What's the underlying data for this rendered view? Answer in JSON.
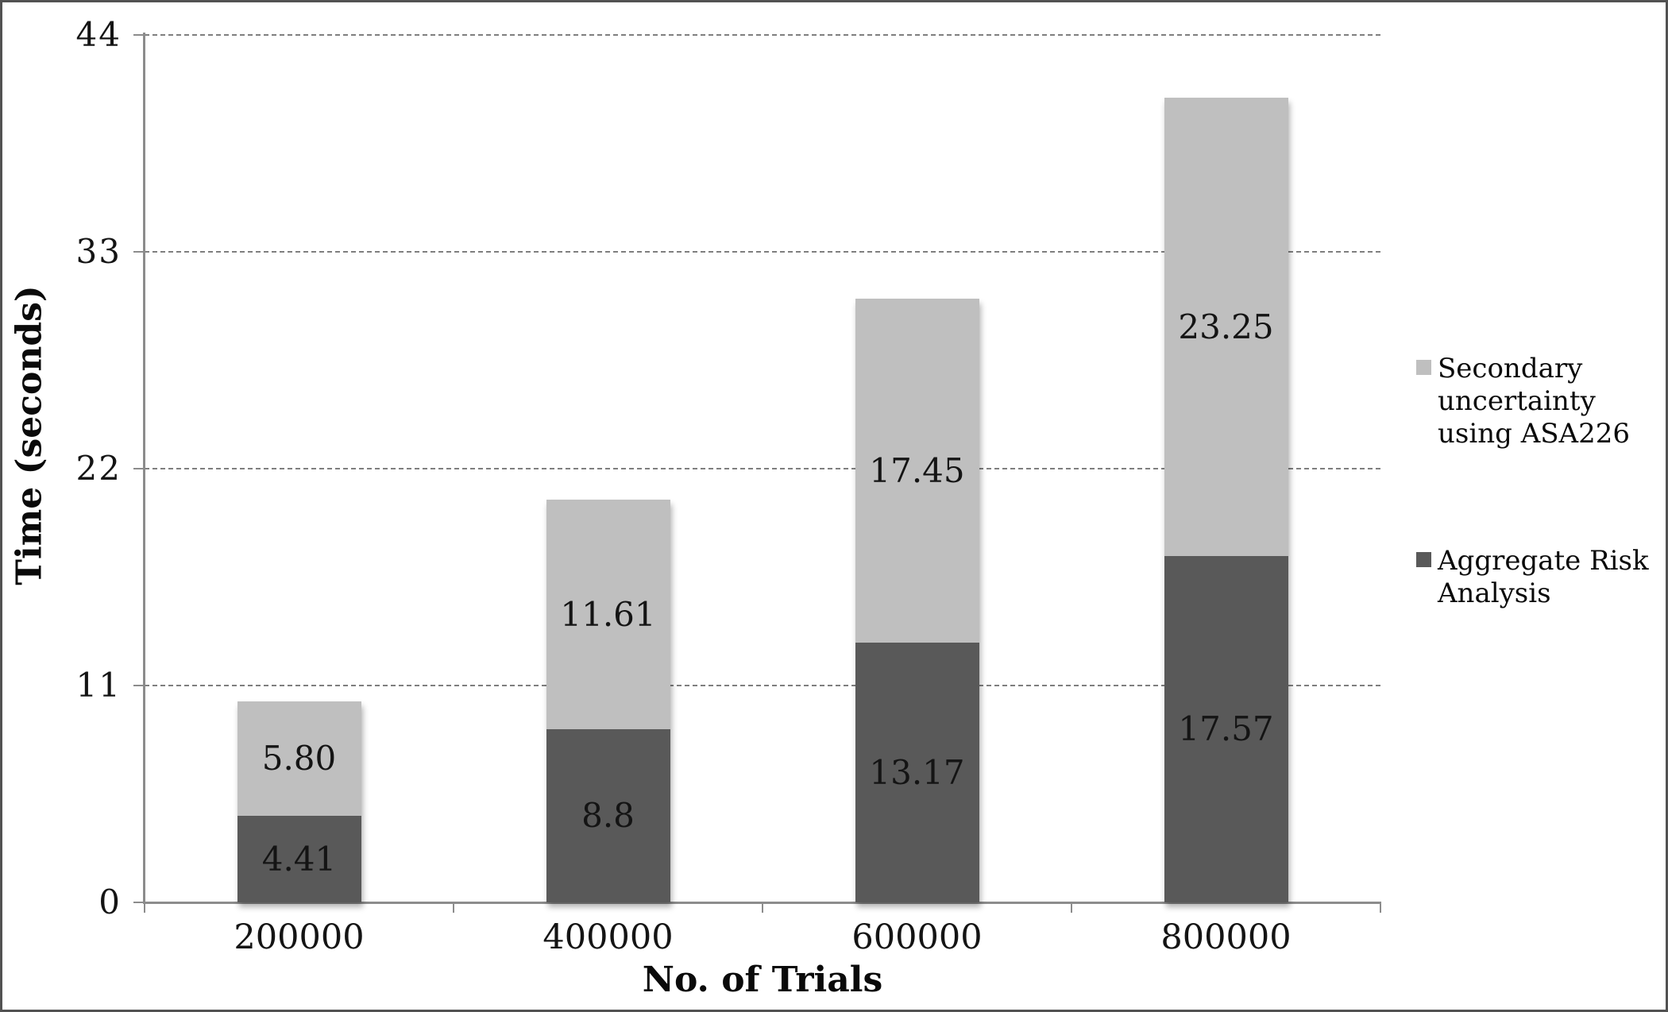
{
  "chart_data": {
    "type": "bar",
    "stacked": true,
    "title": "",
    "xlabel": "No. of Trials",
    "ylabel": "Time (seconds)",
    "categories": [
      "200000",
      "400000",
      "600000",
      "800000"
    ],
    "series": [
      {
        "name": "Aggregate Risk Analysis",
        "color": "#595959",
        "values": [
          4.41,
          8.8,
          13.17,
          17.57
        ],
        "value_labels": [
          "4.41",
          "8.8",
          "13.17",
          "17.57"
        ]
      },
      {
        "name": "Secondary uncertainty using ASA226",
        "color": "#bfbfbf",
        "values": [
          5.8,
          11.61,
          17.45,
          23.25
        ],
        "value_labels": [
          "5.80",
          "11.61",
          "17.45",
          "23.25"
        ]
      }
    ],
    "ylim": [
      0,
      44
    ],
    "yticks": [
      0,
      11,
      22,
      33,
      44
    ],
    "ytick_labels": [
      "0",
      "11",
      "22",
      "33",
      "44"
    ],
    "grid": "horizontal-dashed",
    "legend_position": "right",
    "legend": [
      {
        "label": "Secondary uncertainty using ASA226",
        "lines": [
          "Secondary",
          "uncertainty",
          "using ASA226"
        ],
        "color": "#bfbfbf"
      },
      {
        "label": "Aggregate Risk Analysis",
        "lines": [
          "Aggregate Risk",
          "Analysis"
        ],
        "color": "#595959"
      }
    ],
    "colors": {
      "axis": "#8c8c8c",
      "gridline": "#7f7f7f",
      "label_text": "#141414",
      "background": "#ffffff"
    }
  }
}
